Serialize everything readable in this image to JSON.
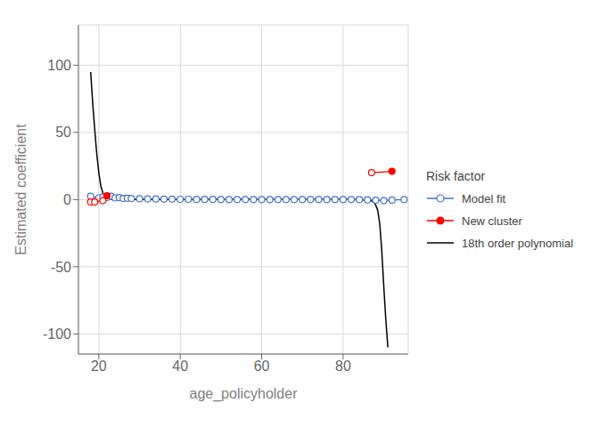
{
  "chart_data": {
    "type": "line",
    "xlabel": "age_policyholder",
    "ylabel": "Estimated coefficient",
    "legend_title": "Risk factor",
    "legend": "right",
    "grid": true,
    "xlim": [
      15,
      96
    ],
    "ylim": [
      -115,
      130
    ],
    "xticks": [
      20,
      40,
      60,
      80
    ],
    "yticks": [
      -100,
      -50,
      0,
      50,
      100
    ],
    "series": [
      {
        "name": "Model fit",
        "color": "#4472C4",
        "marker": "open",
        "x": [
          18,
          20,
          21,
          22,
          23,
          24,
          25,
          26,
          27,
          28,
          30,
          32,
          34,
          36,
          38,
          40,
          42,
          44,
          46,
          48,
          50,
          52,
          54,
          56,
          58,
          60,
          62,
          64,
          66,
          68,
          70,
          72,
          74,
          76,
          78,
          80,
          82,
          84,
          86,
          88,
          90,
          92,
          95
        ],
        "values": [
          2.5,
          1.2,
          1.8,
          1.5,
          2.5,
          1.2,
          1.5,
          0.8,
          1.0,
          0.8,
          0.6,
          0.5,
          0.4,
          0.3,
          0.3,
          0.2,
          0.2,
          0.1,
          0.1,
          0.1,
          0.0,
          0.0,
          0.0,
          0.0,
          0.0,
          0.0,
          0.0,
          0.0,
          0.0,
          0.0,
          0.0,
          0.0,
          0.0,
          0.0,
          0.0,
          0.0,
          0.0,
          0.0,
          -0.2,
          -0.5,
          -0.8,
          -0.4,
          0.0
        ]
      },
      {
        "name": "New cluster",
        "color": "#FF0000",
        "marker": "filled",
        "segments": [
          {
            "x": [
              18,
              19,
              21,
              22
            ],
            "values": [
              -1.8,
              -1.8,
              -0.8,
              2.8
            ],
            "markers": [
              "open",
              "open",
              "open",
              "filled"
            ]
          },
          {
            "x": [
              87,
              92
            ],
            "values": [
              20.0,
              21.0
            ],
            "markers": [
              "open",
              "filled"
            ]
          }
        ]
      },
      {
        "name": "18th order polynomial",
        "color": "#000000",
        "marker": "none",
        "x": [
          18.0,
          18.5,
          19.0,
          19.5,
          20.0,
          20.5,
          21.0,
          21.5,
          22.0,
          22.5,
          23.0,
          24.0,
          25.0,
          26.0,
          27.0,
          28.0,
          30.0,
          32.0,
          35.0,
          40.0,
          45.0,
          50.0,
          55.0,
          60.0,
          65.0,
          70.0,
          75.0,
          80.0,
          82.0,
          84.0,
          85.0,
          86.0,
          87.0,
          87.5,
          88.0,
          88.5,
          89.0,
          89.5,
          90.0,
          90.5,
          91.0
        ],
        "values": [
          95.0,
          72.0,
          52.0,
          34.0,
          20.0,
          10.0,
          5.0,
          2.5,
          1.2,
          0.5,
          0.2,
          0.0,
          0.0,
          0.0,
          0.0,
          0.0,
          0.0,
          0.0,
          0.0,
          0.0,
          0.0,
          0.0,
          0.0,
          0.0,
          0.0,
          0.0,
          0.0,
          0.0,
          0.0,
          -0.1,
          -0.2,
          -0.5,
          -1.0,
          -2.0,
          -4.0,
          -8.0,
          -18.0,
          -38.0,
          -65.0,
          -90.0,
          -110.0
        ]
      }
    ]
  }
}
